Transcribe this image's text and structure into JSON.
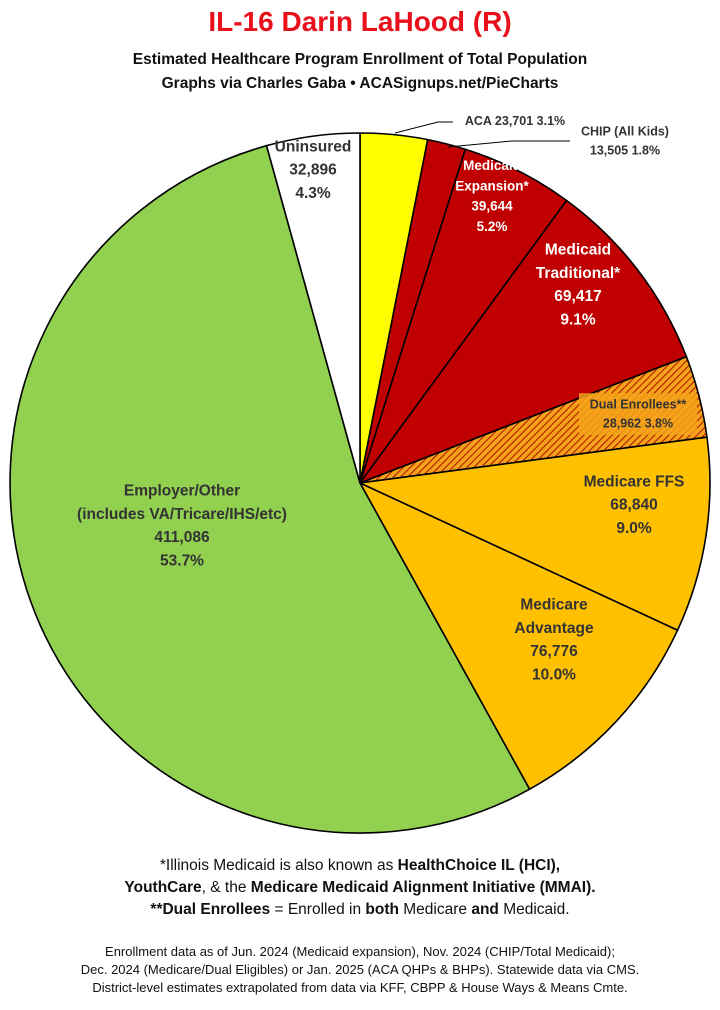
{
  "header": {
    "title": "IL-16 Darin LaHood (R)",
    "subtitle_line1": "Estimated Healthcare Program Enrollment of Total Population",
    "subtitle_line2": "Graphs via Charles Gaba  •  ACASignups.net/PieCharts"
  },
  "chart_data": {
    "type": "pie",
    "title": "IL-16 Darin LaHood (R)",
    "start_angle_deg": 0,
    "direction": "clockwise",
    "slices": [
      {
        "key": "aca",
        "lines": [
          "ACA 23,701 3.1%"
        ],
        "value": 23701,
        "percent": 3.1,
        "color": "#ffff00",
        "label_color": "#333333",
        "pattern": "solid",
        "label_outside": true
      },
      {
        "key": "chip",
        "lines": [
          "CHIP (All Kids)",
          "13,505 1.8%"
        ],
        "value": 13505,
        "percent": 1.8,
        "color": "#c00000",
        "label_color": "#333333",
        "pattern": "solid",
        "label_outside": true
      },
      {
        "key": "medicaid_expansion",
        "lines": [
          "Medicaid",
          "Expansion*",
          "39,644",
          "5.2%"
        ],
        "value": 39644,
        "percent": 5.2,
        "color": "#c00000",
        "label_color": "#ffffff",
        "pattern": "solid",
        "label_outside": false
      },
      {
        "key": "medicaid_traditional",
        "lines": [
          "Medicaid",
          "Traditional*",
          "69,417",
          "9.1%"
        ],
        "value": 69417,
        "percent": 9.1,
        "color": "#c00000",
        "label_color": "#ffffff",
        "pattern": "solid",
        "label_outside": false
      },
      {
        "key": "dual_enrollees",
        "lines": [
          "Dual Enrollees**",
          "28,962 3.8%"
        ],
        "value": 28962,
        "percent": 3.8,
        "color": "#f5a31a",
        "label_color": "#333333",
        "pattern": "hatch",
        "label_outside": false
      },
      {
        "key": "medicare_ffs",
        "lines": [
          "Medicare FFS",
          "68,840",
          "9.0%"
        ],
        "value": 68840,
        "percent": 9.0,
        "color": "#ffc000",
        "label_color": "#333333",
        "pattern": "solid",
        "label_outside": false
      },
      {
        "key": "medicare_advantage",
        "lines": [
          "Medicare",
          "Advantage",
          "76,776",
          "10.0%"
        ],
        "value": 76776,
        "percent": 10.0,
        "color": "#ffc000",
        "label_color": "#333333",
        "pattern": "solid",
        "label_outside": false
      },
      {
        "key": "employer_other",
        "lines": [
          "Employer/Other",
          "(includes VA/Tricare/IHS/etc)",
          "411,086",
          "53.7%"
        ],
        "value": 411086,
        "percent": 53.7,
        "color": "#92d050",
        "label_color": "#333333",
        "pattern": "solid",
        "label_outside": false
      },
      {
        "key": "uninsured",
        "lines": [
          "Uninsured",
          "32,896",
          "4.3%"
        ],
        "value": 32896,
        "percent": 4.3,
        "color": "#ffffff",
        "label_color": "#333333",
        "pattern": "solid",
        "label_outside": false
      }
    ]
  },
  "footnotes": {
    "line1_a": "*Illinois Medicaid is also known as ",
    "line1_b": "HealthChoice IL (HCI),",
    "line2_a": "YouthCare",
    "line2_b": ", & the ",
    "line2_c": "Medicare Medicaid Alignment Initiative (MMAI).",
    "line3_a": "**Dual Enrollees",
    "line3_b": " = Enrolled in ",
    "line3_c": "both",
    "line3_d": " Medicare ",
    "line3_e": "and",
    "line3_f": " Medicaid."
  },
  "source": {
    "line1": "Enrollment data as of Jun. 2024 (Medicaid expansion), Nov. 2024 (CHIP/Total Medicaid);",
    "line2": "Dec. 2024 (Medicare/Dual Eligibles) or Jan. 2025 (ACA QHPs & BHPs). Statewide data via CMS.",
    "line3": "District-level estimates extrapolated from data via KFF, CBPP & House Ways & Means Cmte."
  }
}
